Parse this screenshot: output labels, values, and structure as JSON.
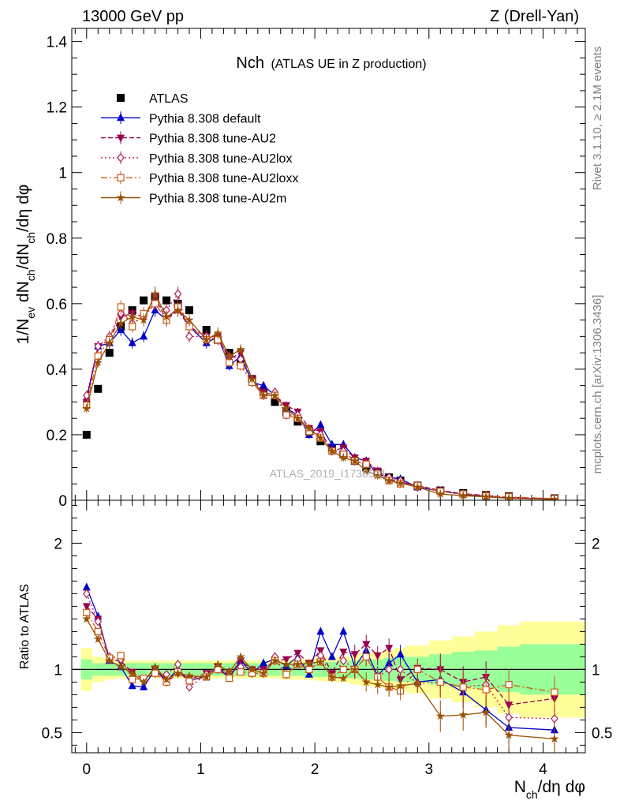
{
  "header": {
    "left": "13000 GeV pp",
    "right": "Z (Drell-Yan)"
  },
  "side_labels": {
    "rivet": "Rivet 3.1.10, ≥ 2.1M events",
    "mcplots": "mcplots.cern.ch [arXiv:1306.3436]"
  },
  "watermark": "ATLAS_2019_I1736531",
  "colors": {
    "ATLAS": "#000000",
    "default": "#0000cc",
    "AU2": "#99004d",
    "AU2lox": "#b21e56",
    "AU2loxx": "#cc5a1a",
    "AU2m": "#995000",
    "band_yellow": "#ffff99",
    "band_green": "#99ff99"
  },
  "chart_data": [
    {
      "type": "scatter",
      "title": "Nch (ATLAS UE in Z production)",
      "title_main": "Nch",
      "title_sub": "(ATLAS UE in Z production)",
      "ylabel_main": "1/N",
      "ylabel_parts": [
        "1/N",
        "ev",
        " dN",
        "ch",
        "/dN",
        "ch",
        "/dη dφ"
      ],
      "xlim": [
        -0.13,
        4.37
      ],
      "ylim": [
        0,
        1.44
      ],
      "yticks": [
        0,
        0.2,
        0.4,
        0.6,
        0.8,
        1,
        1.2,
        1.4
      ],
      "ytick_labels": [
        "0",
        "0.2",
        "0.4",
        "0.6",
        "0.8",
        "1",
        "1.2",
        "1.4"
      ],
      "legend_position": "top-left",
      "legend": [
        "ATLAS",
        "Pythia 8.308 default",
        "Pythia 8.308 tune-AU2",
        "Pythia 8.308 tune-AU2lox",
        "Pythia 8.308 tune-AU2loxx",
        "Pythia 8.308 tune-AU2m"
      ],
      "x": [
        0,
        0.1,
        0.2,
        0.3,
        0.4,
        0.5,
        0.6,
        0.7,
        0.8,
        0.9,
        1.05,
        1.15,
        1.25,
        1.35,
        1.45,
        1.55,
        1.65,
        1.75,
        1.85,
        1.95,
        2.05,
        2.15,
        2.25,
        2.35,
        2.45,
        2.55,
        2.65,
        2.75,
        2.9,
        3.1,
        3.3,
        3.5,
        3.7,
        4.1
      ],
      "series": [
        {
          "name": "ATLAS",
          "key": "ATLAS",
          "marker": "square",
          "values": [
            0.2,
            0.34,
            0.45,
            0.53,
            0.58,
            0.61,
            0.62,
            0.61,
            0.6,
            0.58,
            0.52,
            0.49,
            0.45,
            0.42,
            0.37,
            0.33,
            0.3,
            0.27,
            0.24,
            0.21,
            0.18,
            0.16,
            0.14,
            0.12,
            0.1,
            0.085,
            0.07,
            0.06,
            0.045,
            0.03,
            0.022,
            0.016,
            0.012,
            0.006
          ]
        },
        {
          "name": "Pythia 8.308 default",
          "key": "default",
          "marker": "triangle-up",
          "dash": "",
          "values": [
            0.31,
            0.47,
            0.48,
            0.52,
            0.48,
            0.5,
            0.58,
            0.55,
            0.59,
            0.53,
            0.48,
            0.5,
            0.41,
            0.44,
            0.36,
            0.35,
            0.32,
            0.28,
            0.26,
            0.2,
            0.23,
            0.17,
            0.17,
            0.13,
            0.12,
            0.08,
            0.07,
            0.065,
            0.04,
            0.028,
            0.018,
            0.011,
            0.0065,
            0.003
          ]
        },
        {
          "name": "Pythia 8.308 tune-AU2",
          "key": "AU2",
          "marker": "triangle-down",
          "dash": "6,3",
          "values": [
            0.3,
            0.47,
            0.49,
            0.56,
            0.57,
            0.56,
            0.62,
            0.55,
            0.58,
            0.53,
            0.5,
            0.5,
            0.43,
            0.45,
            0.37,
            0.33,
            0.32,
            0.29,
            0.27,
            0.22,
            0.21,
            0.15,
            0.16,
            0.13,
            0.12,
            0.09,
            0.065,
            0.055,
            0.045,
            0.03,
            0.02,
            0.015,
            0.0087,
            0.0046
          ]
        },
        {
          "name": "Pythia 8.308 tune-AU2lox",
          "key": "AU2lox",
          "marker": "diamond",
          "dash": "2,3",
          "values": [
            0.32,
            0.47,
            0.5,
            0.57,
            0.54,
            0.56,
            0.6,
            0.58,
            0.63,
            0.5,
            0.5,
            0.49,
            0.44,
            0.43,
            0.36,
            0.32,
            0.33,
            0.26,
            0.26,
            0.21,
            0.2,
            0.15,
            0.15,
            0.12,
            0.11,
            0.08,
            0.07,
            0.06,
            0.04,
            0.027,
            0.019,
            0.014,
            0.0075,
            0.0037
          ]
        },
        {
          "name": "Pythia 8.308 tune-AU2loxx",
          "key": "AU2loxx",
          "marker": "square-open",
          "dash": "8,3,2,3",
          "values": [
            0.29,
            0.44,
            0.49,
            0.59,
            0.53,
            0.57,
            0.6,
            0.55,
            0.59,
            0.53,
            0.49,
            0.49,
            0.42,
            0.41,
            0.36,
            0.32,
            0.32,
            0.26,
            0.25,
            0.21,
            0.19,
            0.15,
            0.14,
            0.12,
            0.11,
            0.08,
            0.06,
            0.05,
            0.045,
            0.027,
            0.019,
            0.013,
            0.0105,
            0.0049
          ]
        },
        {
          "name": "Pythia 8.308 tune-AU2m",
          "key": "AU2m",
          "marker": "star",
          "dash": "",
          "values": [
            0.28,
            0.42,
            0.48,
            0.54,
            0.56,
            0.55,
            0.63,
            0.56,
            0.58,
            0.55,
            0.49,
            0.51,
            0.44,
            0.46,
            0.37,
            0.32,
            0.32,
            0.28,
            0.25,
            0.22,
            0.19,
            0.15,
            0.13,
            0.12,
            0.09,
            0.075,
            0.06,
            0.052,
            0.04,
            0.019,
            0.014,
            0.0105,
            0.0058,
            0.0027
          ]
        }
      ]
    },
    {
      "type": "scatter",
      "ylabel": "Ratio to ATLAS",
      "xlabel_parts": [
        "N",
        "ch",
        "/dη dφ"
      ],
      "xlim": [
        -0.13,
        4.37
      ],
      "ylim": [
        0.34,
        2.34
      ],
      "xticks": [
        0,
        1,
        2,
        3,
        4
      ],
      "xtick_labels": [
        "0",
        "1",
        "2",
        "3",
        "4"
      ],
      "yticks": [
        0.5,
        1,
        2
      ],
      "ytick_labels": [
        "0.5",
        "1",
        "2"
      ],
      "reference_line": 1,
      "band_edges": [
        -0.05,
        0.05,
        0.15,
        0.25,
        0.35,
        0.45,
        0.55,
        0.65,
        0.75,
        0.85,
        0.95,
        1.1,
        1.2,
        1.3,
        1.4,
        1.5,
        1.6,
        1.7,
        1.8,
        1.9,
        2.0,
        2.1,
        2.2,
        2.3,
        2.4,
        2.5,
        2.6,
        2.7,
        2.8,
        3.0,
        3.2,
        3.4,
        3.6,
        3.8,
        4.4
      ],
      "band_green": [
        0.08,
        0.05,
        0.05,
        0.05,
        0.05,
        0.05,
        0.05,
        0.05,
        0.05,
        0.05,
        0.05,
        0.05,
        0.05,
        0.05,
        0.05,
        0.05,
        0.05,
        0.05,
        0.05,
        0.06,
        0.06,
        0.06,
        0.07,
        0.07,
        0.08,
        0.08,
        0.09,
        0.1,
        0.1,
        0.12,
        0.14,
        0.15,
        0.18,
        0.2
      ],
      "band_yellow": [
        0.17,
        0.1,
        0.08,
        0.07,
        0.07,
        0.07,
        0.07,
        0.07,
        0.07,
        0.07,
        0.07,
        0.07,
        0.07,
        0.07,
        0.07,
        0.07,
        0.07,
        0.08,
        0.08,
        0.08,
        0.09,
        0.1,
        0.1,
        0.12,
        0.13,
        0.14,
        0.15,
        0.17,
        0.19,
        0.23,
        0.26,
        0.3,
        0.35,
        0.38
      ],
      "series": [
        {
          "key": "default",
          "values": [
            1.65,
            1.42,
            1.07,
            1.02,
            0.87,
            0.86,
            1.0,
            0.91,
            1.0,
            0.91,
            0.95,
            1.02,
            0.93,
            1.07,
            0.97,
            1.05,
            1.08,
            1.03,
            1.1,
            0.96,
            1.3,
            1.1,
            1.3,
            1.02,
            1.15,
            0.95,
            1.05,
            1.12,
            0.9,
            0.92,
            0.82,
            0.68,
            0.54,
            0.52
          ]
        },
        {
          "key": "AU2",
          "values": [
            1.5,
            1.4,
            1.09,
            1.06,
            0.98,
            0.92,
            1.0,
            0.9,
            0.97,
            0.92,
            0.97,
            1.02,
            0.95,
            1.07,
            1.0,
            1.0,
            1.07,
            1.08,
            1.13,
            1.05,
            1.15,
            0.97,
            1.14,
            1.12,
            1.2,
            1.11,
            1.17,
            0.92,
            1.01,
            1.0,
            0.9,
            0.94,
            0.72,
            0.77
          ]
        },
        {
          "key": "AU2lox",
          "values": [
            1.6,
            1.38,
            1.1,
            1.08,
            0.93,
            0.92,
            0.97,
            0.96,
            1.04,
            0.86,
            0.96,
            1.0,
            0.98,
            1.02,
            0.97,
            0.97,
            1.1,
            0.96,
            1.08,
            1.0,
            1.11,
            0.94,
            1.07,
            1.0,
            1.1,
            0.94,
            1.0,
            1.0,
            0.89,
            0.9,
            0.86,
            0.88,
            0.62,
            0.61
          ]
        },
        {
          "key": "AU2loxx",
          "values": [
            1.45,
            1.3,
            1.09,
            1.11,
            0.92,
            0.93,
            0.97,
            0.9,
            0.98,
            0.91,
            0.94,
            1.0,
            0.93,
            0.98,
            0.97,
            0.97,
            1.07,
            0.96,
            1.04,
            1.0,
            1.06,
            0.94,
            1.0,
            1.0,
            1.1,
            0.94,
            0.86,
            0.83,
            1.0,
            0.9,
            0.86,
            0.84,
            0.88,
            0.82
          ]
        },
        {
          "key": "AU2m",
          "values": [
            1.4,
            1.24,
            1.07,
            1.02,
            0.97,
            0.9,
            1.02,
            0.92,
            0.97,
            0.95,
            0.94,
            1.04,
            0.98,
            1.1,
            1.0,
            0.97,
            1.07,
            1.04,
            1.04,
            1.05,
            1.06,
            0.94,
            0.93,
            1.0,
            0.9,
            0.88,
            0.86,
            0.87,
            0.89,
            0.63,
            0.64,
            0.66,
            0.48,
            0.45
          ]
        }
      ]
    }
  ]
}
